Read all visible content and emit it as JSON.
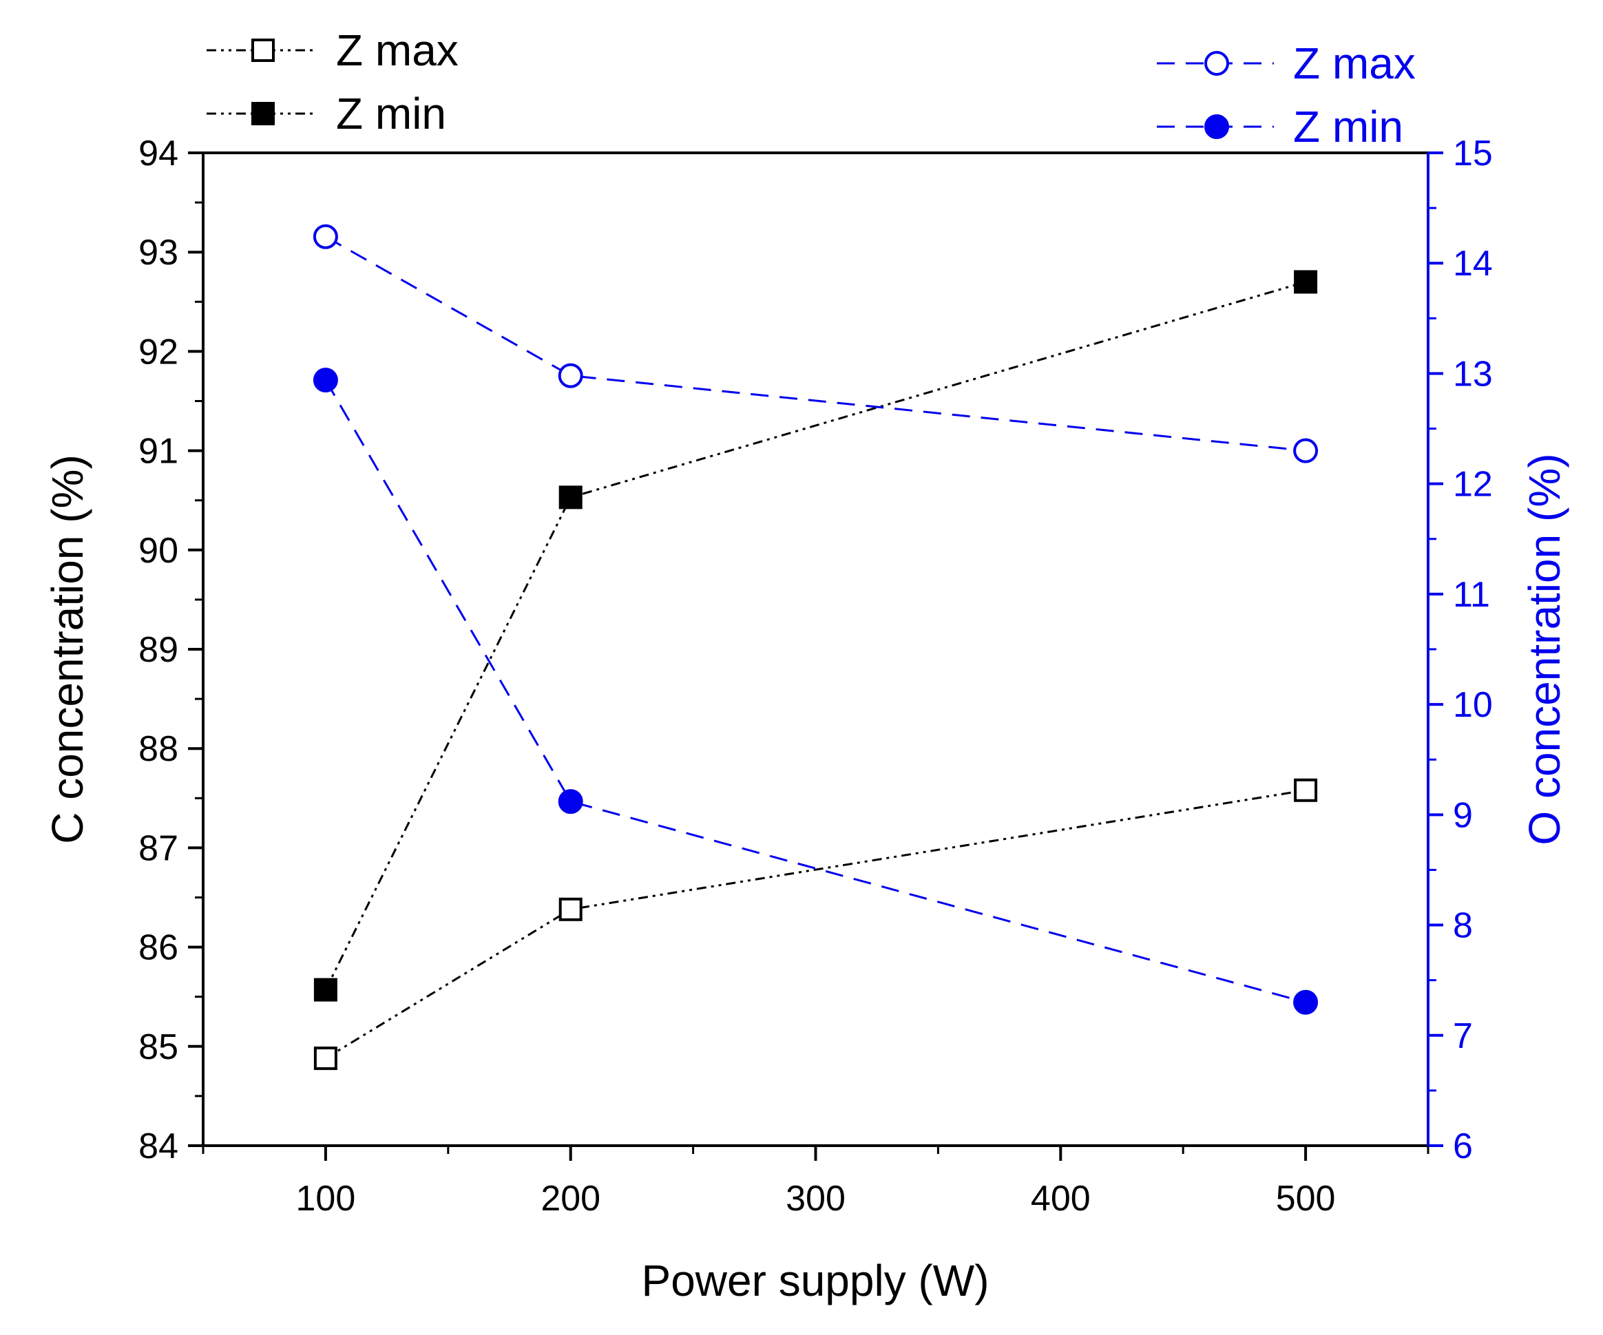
{
  "chart_data": {
    "type": "line",
    "xlabel": "Power supply (W)",
    "ylabel_left": "C concentration (%)",
    "ylabel_right": "O concentration (%)",
    "xlim": [
      50,
      550
    ],
    "xticks": [
      100,
      200,
      300,
      400,
      500
    ],
    "ylim_left": [
      84,
      94
    ],
    "yticks_left": [
      84,
      85,
      86,
      87,
      88,
      89,
      90,
      91,
      92,
      93,
      94
    ],
    "ylim_right": [
      6,
      15
    ],
    "yticks_right": [
      6,
      7,
      8,
      9,
      10,
      11,
      12,
      13,
      14,
      15
    ],
    "colors": {
      "black": "#000000",
      "blue": "#0000ee"
    },
    "series": [
      {
        "name": "Z max",
        "axis": "left",
        "marker": "square-open",
        "line": "dash-dot-dot",
        "color": "#000000",
        "x": [
          100,
          200,
          500
        ],
        "y": [
          84.88,
          86.38,
          87.58
        ]
      },
      {
        "name": "Z min",
        "axis": "left",
        "marker": "square-filled",
        "line": "dash-dot-dot",
        "color": "#000000",
        "x": [
          100,
          200,
          500
        ],
        "y": [
          85.57,
          90.53,
          92.7
        ]
      },
      {
        "name": "Z max",
        "axis": "right",
        "marker": "circle-open",
        "line": "dash",
        "color": "#0000ee",
        "x": [
          100,
          200,
          500
        ],
        "y": [
          14.24,
          12.98,
          12.3
        ]
      },
      {
        "name": "Z min",
        "axis": "right",
        "marker": "circle-filled",
        "line": "dash",
        "color": "#0000ee",
        "x": [
          100,
          200,
          500
        ],
        "y": [
          12.94,
          9.12,
          7.3
        ]
      }
    ]
  }
}
